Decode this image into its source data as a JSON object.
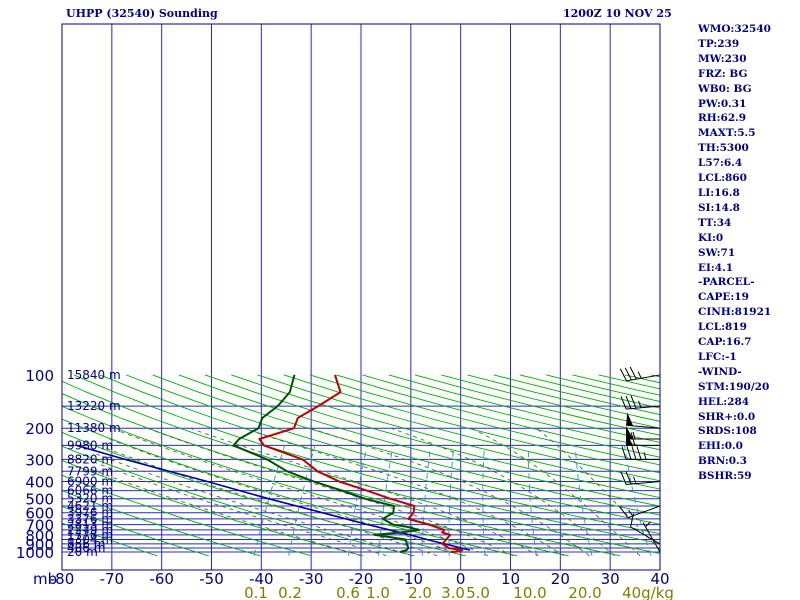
{
  "header": {
    "title": "UHPP (32540) Sounding",
    "timestamp": "1200Z 10 NOV 25"
  },
  "indices": [
    "WMO:32540",
    "TP:239",
    "MW:230",
    "FRZ: BG",
    "WB0: BG",
    "PW:0.31",
    "RH:62.9",
    "MAXT:5.5",
    "TH:5300",
    "L57:6.4",
    "LCL:860",
    "LI:16.8",
    "SI:14.8",
    "TT:34",
    "KI:0",
    "SW:71",
    "EI:4.1",
    "-PARCEL-",
    "CAPE:19",
    "CINH:81921",
    "LCL:819",
    "CAP:16.7",
    "LFC:-1",
    "-WIND-",
    "STM:190/20",
    "HEL:284",
    "SHR+:0.0",
    "SRDS:108",
    "EHI:0.0",
    "BRN:0.3",
    "BSHR:59"
  ],
  "colors": {
    "frame": "#00008b",
    "grid": "#2828c8",
    "dry_adiabat": "#00b000",
    "moist_adiabat": "#556b2f",
    "mixing_ratio": "#3090d0",
    "temperature": "#c00000",
    "dewpoint": "#005000",
    "parcel": "#0000a0",
    "mixing_labels": "#808000"
  },
  "chart_data": {
    "type": "skew-t",
    "p_ticks": [
      100,
      200,
      300,
      400,
      500,
      600,
      700,
      800,
      900,
      1000
    ],
    "t_ticks": [
      "-80",
      "-70",
      "-60",
      "-50",
      "-40",
      "-30",
      "-20",
      "-10",
      "0",
      "10",
      "20",
      "30",
      "40"
    ],
    "t_axis_prefix": "mb",
    "mixing_ratio_labels": [
      "0.1",
      "0.2",
      "0.6",
      "1.0",
      "2.0",
      "3.0",
      "5.0",
      "10.0",
      "20.0",
      "40g/kg"
    ],
    "mixing_ratio_values": [
      0.1,
      0.2,
      0.6,
      1.0,
      2.0,
      3.0,
      5.0,
      10.0,
      20.0,
      40.0
    ],
    "height_labels": [
      {
        "p": 100,
        "label": "15840 m"
      },
      {
        "p": 150,
        "label": "13220 m"
      },
      {
        "p": 200,
        "label": "11380 m"
      },
      {
        "p": 250,
        "label": "9980 m"
      },
      {
        "p": 300,
        "label": "8820 m"
      },
      {
        "p": 350,
        "label": "7799 m"
      },
      {
        "p": 400,
        "label": "6900 m"
      },
      {
        "p": 450,
        "label": "6066 m"
      },
      {
        "p": 500,
        "label": "5320 m"
      },
      {
        "p": 550,
        "label": "4621 m"
      },
      {
        "p": 600,
        "label": "3976 m"
      },
      {
        "p": 650,
        "label": "3376 m"
      },
      {
        "p": 700,
        "label": "2813 m"
      },
      {
        "p": 750,
        "label": "2279 m"
      },
      {
        "p": 800,
        "label": "1778 m"
      },
      {
        "p": 850,
        "label": "1304 m"
      },
      {
        "p": 900,
        "label": "856 m"
      },
      {
        "p": 950,
        "label": "406 m"
      },
      {
        "p": 1000,
        "label": "20 m"
      }
    ],
    "temperature": [
      [
        1000,
        -3
      ],
      [
        995,
        -2
      ],
      [
        975,
        -1
      ],
      [
        950,
        -4
      ],
      [
        900,
        -6
      ],
      [
        850,
        -6
      ],
      [
        800,
        -6
      ],
      [
        775,
        -8
      ],
      [
        750,
        -8
      ],
      [
        700,
        -12
      ],
      [
        650,
        -17
      ],
      [
        600,
        -17
      ],
      [
        550,
        -18
      ],
      [
        500,
        -24
      ],
      [
        450,
        -30
      ],
      [
        400,
        -37
      ],
      [
        350,
        -43
      ],
      [
        300,
        -48
      ],
      [
        250,
        -58
      ],
      [
        230,
        -60
      ],
      [
        200,
        -55
      ],
      [
        175,
        -56
      ],
      [
        150,
        -54
      ],
      [
        125,
        -52
      ],
      [
        100,
        -56
      ]
    ],
    "dewpoint": [
      [
        1000,
        -13
      ],
      [
        975,
        -12
      ],
      [
        950,
        -12
      ],
      [
        900,
        -13
      ],
      [
        850,
        -14
      ],
      [
        800,
        -21
      ],
      [
        775,
        -16
      ],
      [
        750,
        -13
      ],
      [
        720,
        -16
      ],
      [
        700,
        -19
      ],
      [
        650,
        -22
      ],
      [
        600,
        -21
      ],
      [
        550,
        -22
      ],
      [
        500,
        -29
      ],
      [
        450,
        -35
      ],
      [
        400,
        -42
      ],
      [
        350,
        -49
      ],
      [
        300,
        -55
      ],
      [
        250,
        -64
      ],
      [
        230,
        -64
      ],
      [
        200,
        -62
      ],
      [
        175,
        -63
      ],
      [
        150,
        -62
      ],
      [
        125,
        -62
      ],
      [
        100,
        -64
      ]
    ],
    "parcel": [
      [
        975,
        0.5
      ],
      [
        860,
        -9
      ],
      [
        800,
        -14
      ],
      [
        700,
        -24
      ],
      [
        600,
        -35
      ],
      [
        500,
        -48
      ],
      [
        400,
        -63
      ],
      [
        300,
        -83
      ],
      [
        250,
        -95
      ]
    ],
    "wind_barbs": [
      {
        "p": 100,
        "dir": 260,
        "spd": 35
      },
      {
        "p": 150,
        "dir": 265,
        "spd": 35
      },
      {
        "p": 200,
        "dir": 275,
        "spd": 50
      },
      {
        "p": 230,
        "dir": 270,
        "spd": 55
      },
      {
        "p": 250,
        "dir": 270,
        "spd": 60
      },
      {
        "p": 300,
        "dir": 270,
        "spd": 45
      },
      {
        "p": 400,
        "dir": 265,
        "spd": 25
      },
      {
        "p": 550,
        "dir": 250,
        "spd": 15
      },
      {
        "p": 900,
        "dir": 300,
        "spd": 10
      },
      {
        "p": 1000,
        "dir": 330,
        "spd": 5
      }
    ]
  }
}
